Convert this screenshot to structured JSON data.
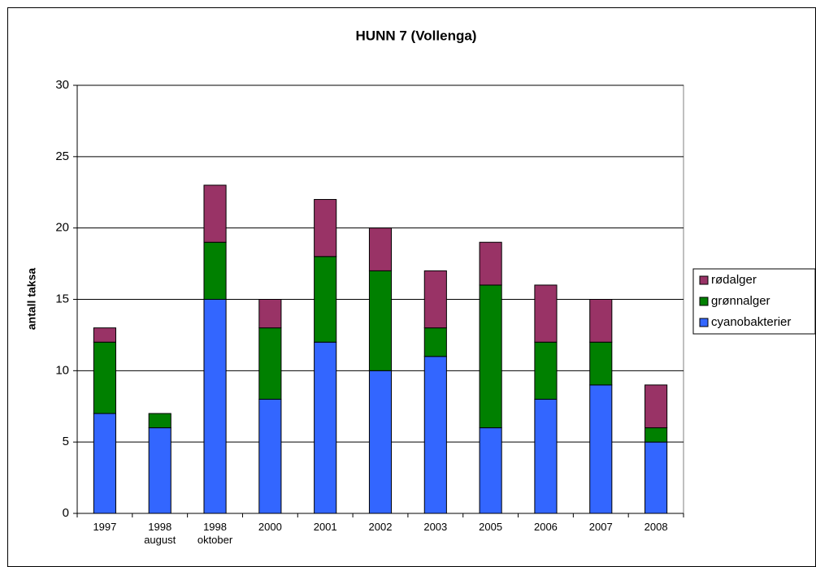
{
  "chart_data": {
    "type": "stacked_bar",
    "title": "HUNN 7 (Vollenga)",
    "y_label": "antall taksa",
    "categories": [
      "1997",
      "1998\naugust",
      "1998\noktober",
      "2000",
      "2001",
      "2002",
      "2003",
      "2005",
      "2006",
      "2007",
      "2008"
    ],
    "series": [
      {
        "name": "cyanobakterier",
        "color": "#3366ff",
        "values": [
          7,
          6,
          15,
          8,
          12,
          10,
          11,
          6,
          8,
          9,
          5
        ]
      },
      {
        "name": "grønnalger",
        "color": "#008000",
        "values": [
          5,
          1,
          4,
          5,
          6,
          7,
          2,
          10,
          4,
          3,
          1
        ]
      },
      {
        "name": "rødalger",
        "color": "#993366",
        "values": [
          1,
          0,
          4,
          2,
          4,
          3,
          4,
          3,
          4,
          3,
          3
        ]
      }
    ],
    "ylim": [
      0,
      30
    ],
    "yticks": [
      0,
      5,
      10,
      15,
      20,
      25,
      30
    ],
    "grid": true,
    "legend": "right"
  }
}
